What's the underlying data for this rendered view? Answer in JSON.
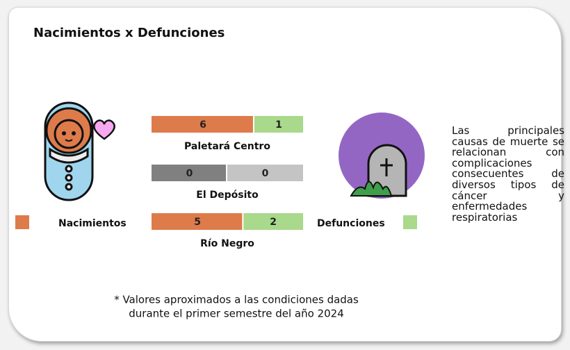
{
  "chart_data": {
    "type": "bar",
    "title": "Nacimientos x Defunciones",
    "categories": [
      "Paletará Centro",
      "El Depósito",
      "Río Negro"
    ],
    "series": [
      {
        "name": "Nacimientos",
        "color": "#de7b4a",
        "values": [
          6,
          0,
          5
        ]
      },
      {
        "name": "Defunciones",
        "color": "#a9d98b",
        "values": [
          1,
          0,
          2
        ]
      }
    ],
    "zero_colors": [
      "#808080",
      "#c4c4c4"
    ],
    "note": "Las principales causas de muerte se relacionan con complicaciones consecuentes de diversos tipos de cáncer y enfermedades respiratorias",
    "footnote": [
      "* Valores aproximados a las condiciones dadas",
      "durante el primer semestre del año 2024"
    ]
  }
}
